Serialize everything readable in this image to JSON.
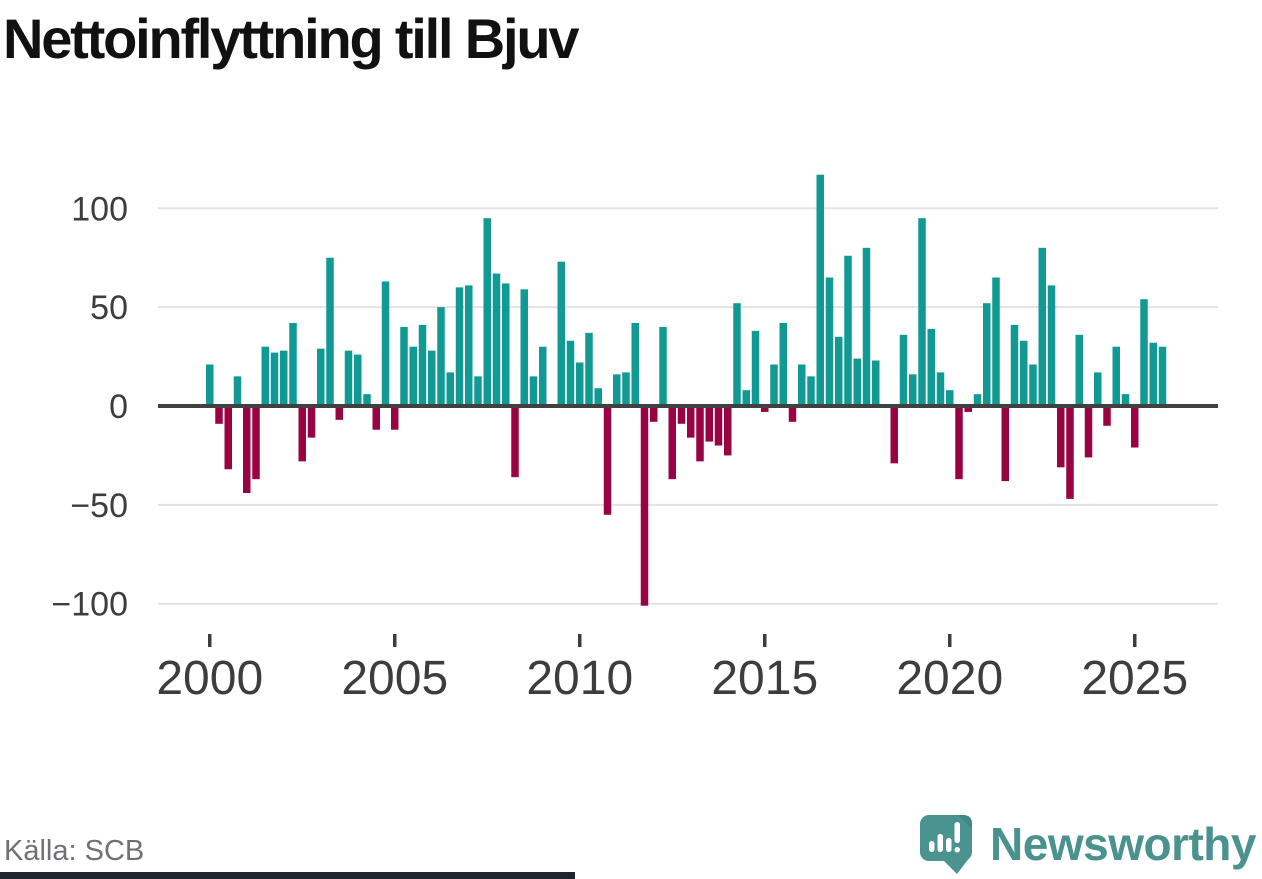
{
  "title": "Nettoinflyttning till Bjuv",
  "source": "Källa: SCB",
  "brand": {
    "name": "Newsworthy",
    "logo_icon": "speech-bubble-bar-chart-icon",
    "color": "#4b928e"
  },
  "colors": {
    "positive_bar": "#119a93",
    "negative_bar": "#9a0342",
    "zero_line": "#404040",
    "gridline": "#e2e2e2",
    "axis_text": "#3d3d3d",
    "title_text": "#111111",
    "source_text": "#6f6f75",
    "bottom_accent": "#20242d"
  },
  "chart_data": {
    "type": "bar",
    "title": "Nettoinflyttning till Bjuv",
    "xlabel": "",
    "ylabel": "",
    "frequency": "quarterly",
    "start_year": 2000,
    "end_year": 2025,
    "grid": true,
    "legend": false,
    "yticks": [
      100,
      50,
      0,
      -50,
      -100
    ],
    "xticks": [
      2000,
      2005,
      2010,
      2015,
      2020,
      2025
    ],
    "ylim": [
      -110,
      125
    ],
    "values": [
      21,
      -9,
      -32,
      15,
      -44,
      -37,
      30,
      27,
      28,
      42,
      -28,
      -16,
      29,
      75,
      -7,
      28,
      26,
      6,
      -12,
      63,
      -12,
      40,
      30,
      41,
      28,
      50,
      17,
      60,
      61,
      15,
      95,
      67,
      62,
      -36,
      59,
      15,
      30,
      0,
      73,
      33,
      22,
      37,
      9,
      -55,
      16,
      17,
      42,
      -101,
      -8,
      40,
      -37,
      -9,
      -16,
      -28,
      -18,
      -20,
      -25,
      52,
      8,
      38,
      -3,
      21,
      42,
      -8,
      21,
      15,
      117,
      65,
      35,
      76,
      24,
      80,
      23,
      0,
      -29,
      36,
      16,
      95,
      39,
      17,
      8,
      -37,
      -3,
      6,
      52,
      65,
      -38,
      41,
      33,
      21,
      80,
      61,
      -31,
      -47,
      36,
      -26,
      17,
      -10,
      30,
      6,
      -21,
      54,
      32,
      30
    ]
  }
}
